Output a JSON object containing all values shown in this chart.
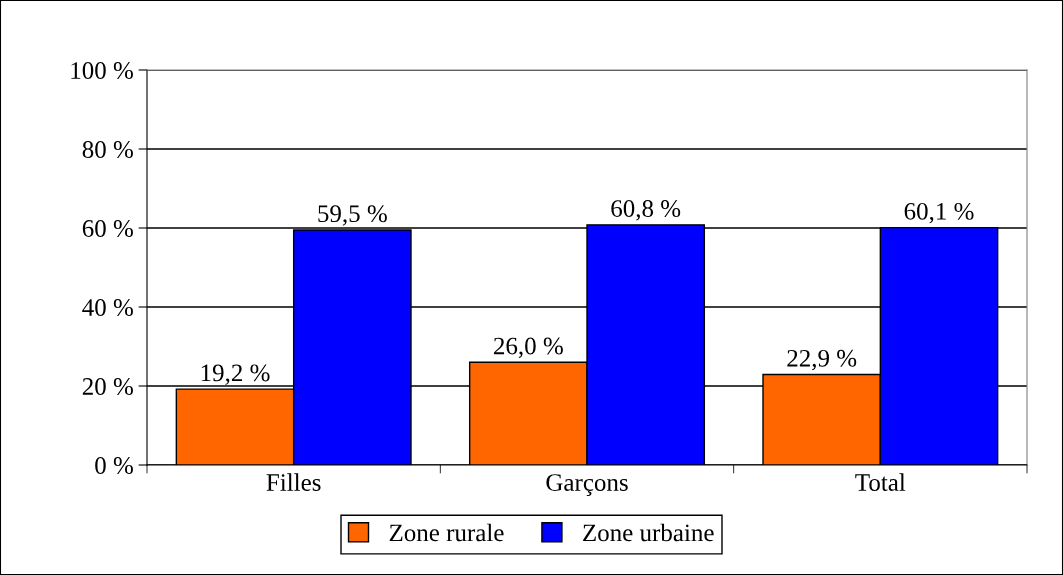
{
  "chart_data": {
    "type": "bar",
    "categories": [
      "Filles",
      "Garçons",
      "Total"
    ],
    "series": [
      {
        "name": "Zone rurale",
        "color": "#ff6600",
        "values": [
          19.2,
          26.0,
          22.9
        ],
        "value_labels": [
          "19,2 %",
          "26,0 %",
          "22,9 %"
        ]
      },
      {
        "name": "Zone urbaine",
        "color": "#0000ff",
        "values": [
          59.5,
          60.8,
          60.1
        ],
        "value_labels": [
          "59,5 %",
          "60,8 %",
          "60,1 %"
        ]
      }
    ],
    "ylim": [
      0,
      100
    ],
    "yticks": [
      {
        "value": 0,
        "label": "0 %"
      },
      {
        "value": 20,
        "label": "20 %"
      },
      {
        "value": 40,
        "label": "40 %"
      },
      {
        "value": 60,
        "label": "60 %"
      },
      {
        "value": 80,
        "label": "80 %"
      },
      {
        "value": 100,
        "label": "100 %"
      }
    ],
    "grid": "y",
    "legend": "bottom"
  }
}
